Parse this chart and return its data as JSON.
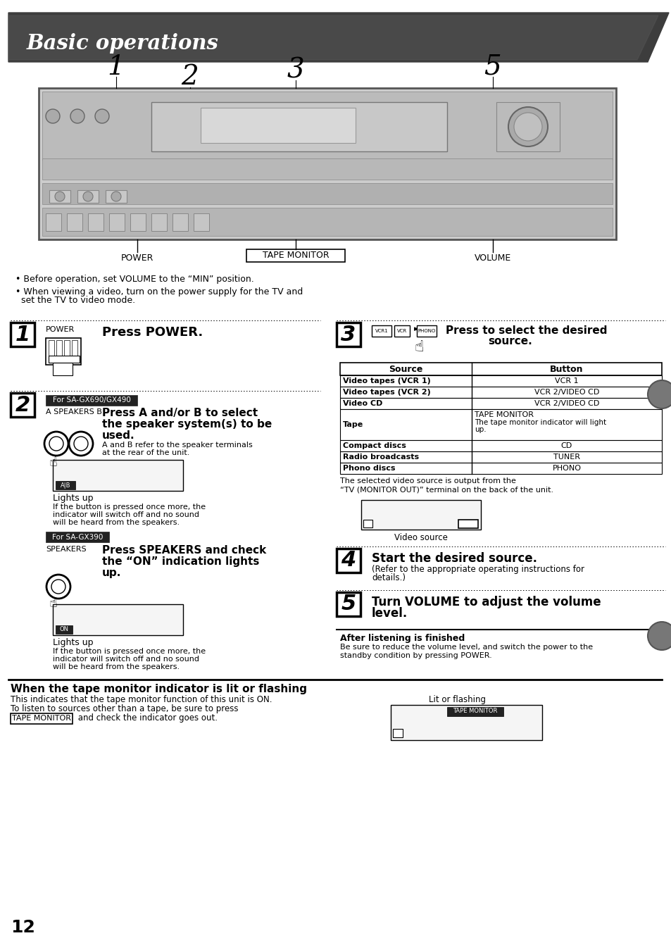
{
  "title": "Basic operations",
  "bg_color": "#ffffff",
  "page_number": "12",
  "bullet_notes": [
    "Before operation, set VOLUME to the \"MIN\" position.",
    "When viewing a video, turn on the power supply for the TV and\n  set the TV to video mode."
  ],
  "table_headers": [
    "Source",
    "Button"
  ],
  "table_rows": [
    [
      "Video tapes (VCR 1)",
      "VCR 1",
      false
    ],
    [
      "Video tapes (VCR 2)",
      "VCR 2/VIDEO CD",
      false
    ],
    [
      "Video CD",
      "VCR 2/VIDEO CD",
      false
    ],
    [
      "Tape",
      "TAPE MONITOR",
      true
    ],
    [
      "Compact discs",
      "CD",
      false
    ],
    [
      "Radio broadcasts",
      "TUNER",
      false
    ],
    [
      "Phono discs",
      "PHONO",
      false
    ]
  ]
}
